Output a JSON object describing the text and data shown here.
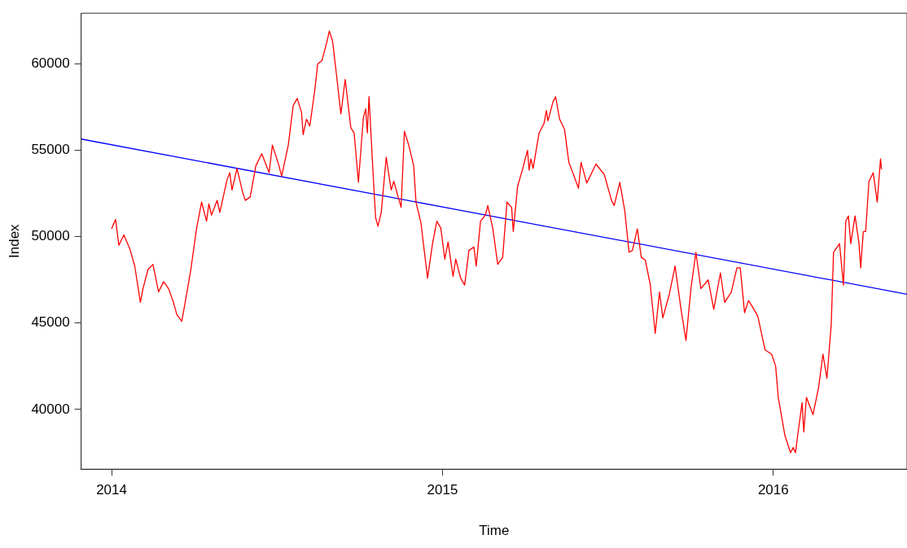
{
  "chart_data": {
    "type": "line",
    "xlabel": "Time",
    "ylabel": "Index",
    "xlim": [
      2013.908,
      2016.404
    ],
    "xticks": [
      2014,
      2015,
      2016
    ],
    "ylim": [
      36548,
      62931
    ],
    "yticks": [
      40000,
      45000,
      50000,
      55000,
      60000
    ],
    "grid": false,
    "legend": false,
    "marker": "none",
    "line_style": "solid",
    "series": [
      {
        "color": "#ff0000",
        "x": [
          2014.0,
          2014.012,
          2014.022,
          2014.037,
          2014.055,
          2014.07,
          2014.087,
          2014.095,
          2014.11,
          2014.125,
          2014.142,
          2014.157,
          2014.172,
          2014.187,
          2014.197,
          2014.212,
          2014.222,
          2014.239,
          2014.257,
          2014.272,
          2014.287,
          2014.294,
          2014.302,
          2014.319,
          2014.327,
          2014.349,
          2014.357,
          2014.364,
          2014.379,
          2014.397,
          2014.404,
          2014.419,
          2014.436,
          2014.454,
          2014.476,
          2014.486,
          2014.506,
          2014.514,
          2014.534,
          2014.549,
          2014.561,
          2014.574,
          2014.579,
          2014.589,
          2014.599,
          2014.613,
          2014.623,
          2014.636,
          2014.651,
          2014.658,
          2014.668,
          2014.681,
          2014.693,
          2014.706,
          2014.723,
          2014.733,
          2014.746,
          2014.761,
          2014.768,
          2014.773,
          2014.778,
          2014.791,
          2014.798,
          2014.805,
          2014.815,
          2014.83,
          2014.845,
          2014.853,
          2014.875,
          2014.885,
          2014.898,
          2014.913,
          2014.92,
          2014.935,
          2014.948,
          2014.955,
          2014.97,
          2014.983,
          2014.995,
          2015.007,
          2015.017,
          2015.032,
          2015.04,
          2015.055,
          2015.067,
          2015.08,
          2015.095,
          2015.102,
          2015.115,
          2015.13,
          2015.137,
          2015.152,
          2015.167,
          2015.182,
          2015.195,
          2015.209,
          2015.214,
          2015.227,
          2015.242,
          2015.257,
          2015.262,
          2015.267,
          2015.274,
          2015.292,
          2015.307,
          2015.314,
          2015.319,
          2015.334,
          2015.342,
          2015.354,
          2015.369,
          2015.382,
          2015.396,
          2015.411,
          2015.419,
          2015.436,
          2015.464,
          2015.489,
          2015.511,
          2015.519,
          2015.536,
          2015.551,
          2015.564,
          2015.574,
          2015.589,
          2015.601,
          2015.613,
          2015.628,
          2015.643,
          2015.656,
          2015.666,
          2015.686,
          2015.703,
          2015.721,
          2015.736,
          2015.751,
          2015.766,
          2015.781,
          2015.803,
          2015.82,
          2015.84,
          2015.853,
          2015.873,
          2015.89,
          2015.9,
          2015.913,
          2015.925,
          2015.938,
          2015.953,
          2015.975,
          2015.995,
          2016.007,
          2016.015,
          2016.035,
          2016.052,
          2016.06,
          2016.067,
          2016.075,
          2016.087,
          2016.092,
          2016.1,
          2016.12,
          2016.137,
          2016.15,
          2016.162,
          2016.175,
          2016.182,
          2016.2,
          2016.212,
          2016.219,
          2016.227,
          2016.234,
          2016.247,
          2016.259,
          2016.264,
          2016.272,
          2016.279,
          2016.289,
          2016.302,
          2016.314,
          2016.324,
          2016.327
        ],
        "values": [
          50450,
          51000,
          49500,
          50100,
          49300,
          48300,
          46200,
          47000,
          48100,
          48400,
          46800,
          47400,
          47000,
          46200,
          45500,
          45100,
          46150,
          48040,
          50500,
          52000,
          50900,
          51900,
          51250,
          52100,
          51400,
          53300,
          53700,
          52700,
          53950,
          52500,
          52100,
          52300,
          54100,
          54800,
          53700,
          55300,
          54100,
          53500,
          55300,
          57600,
          58000,
          57200,
          55900,
          56800,
          56400,
          58300,
          60000,
          60200,
          61300,
          61900,
          61300,
          59150,
          57100,
          59100,
          56300,
          56000,
          53150,
          56900,
          57400,
          56000,
          58100,
          53400,
          51100,
          50600,
          51400,
          54600,
          52700,
          53200,
          51700,
          56100,
          55300,
          54100,
          52000,
          50800,
          48700,
          47600,
          49600,
          50900,
          50500,
          48700,
          49700,
          47700,
          48700,
          47600,
          47200,
          49200,
          49400,
          48300,
          50900,
          51250,
          51800,
          50500,
          48400,
          48800,
          52000,
          51700,
          50300,
          52900,
          53900,
          55000,
          53850,
          54500,
          53950,
          56000,
          56550,
          57300,
          56700,
          57800,
          58100,
          56800,
          56200,
          54300,
          53600,
          52800,
          54300,
          53100,
          54200,
          53600,
          52100,
          51800,
          53150,
          51500,
          49100,
          49200,
          50450,
          48800,
          48650,
          47240,
          44400,
          46800,
          45300,
          46700,
          48300,
          45800,
          44000,
          47000,
          49100,
          47000,
          47500,
          45800,
          47900,
          46200,
          46800,
          48200,
          48200,
          45600,
          46300,
          45900,
          45400,
          43450,
          43200,
          42500,
          40700,
          38500,
          37500,
          37800,
          37500,
          38700,
          40400,
          38700,
          40700,
          39700,
          41300,
          43200,
          41800,
          44900,
          49100,
          49600,
          47200,
          50900,
          51200,
          49600,
          51200,
          49600,
          48200,
          50300,
          50300,
          53200,
          53700,
          52000,
          54500,
          53900
        ]
      },
      {
        "color": "#0000ff",
        "x": [
          2013.908,
          2016.404
        ],
        "values": [
          55650,
          46670
        ]
      }
    ]
  }
}
